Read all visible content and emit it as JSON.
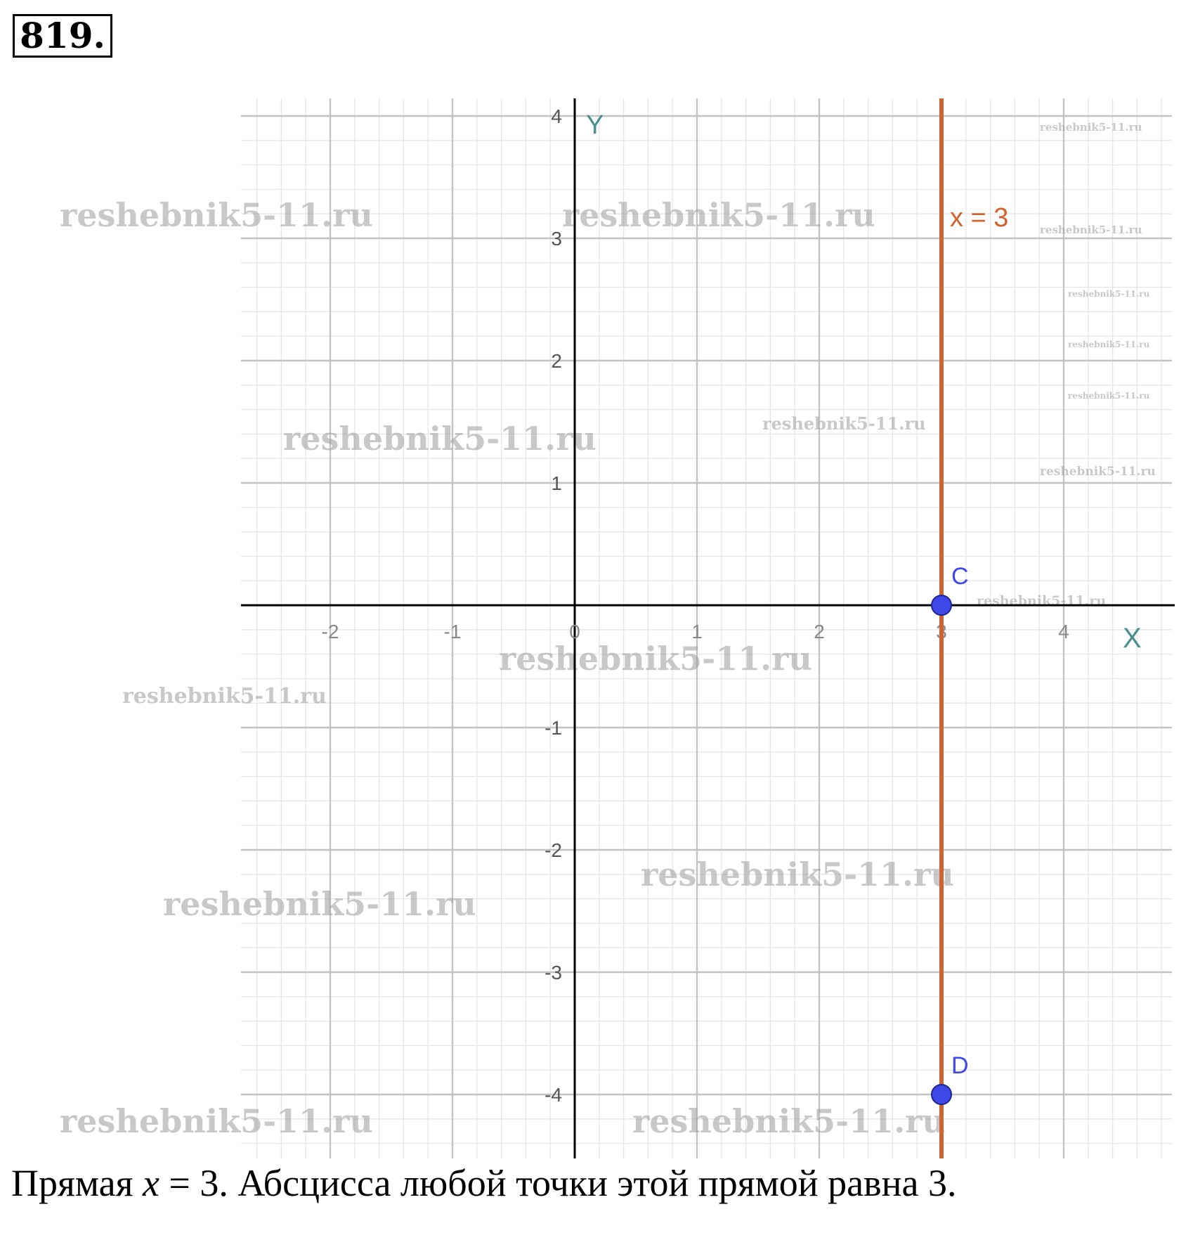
{
  "problem_number": "819.",
  "graph": {
    "x_axis_label": "X",
    "y_axis_label": "Y",
    "x_ticks": [
      -2,
      -1,
      0,
      1,
      2,
      3,
      4
    ],
    "y_ticks": [
      -4,
      -3,
      -2,
      -1,
      1,
      2,
      3,
      4
    ],
    "xlim": [
      -2.75,
      4.9
    ],
    "ylim": [
      -4.5,
      4.2
    ],
    "minor_grid_step": 0.2,
    "line": {
      "label": "x = 3",
      "x": 3,
      "color": "#d2622f"
    },
    "points": [
      {
        "label": "C",
        "x": 3,
        "y": 0,
        "color": "#3f48e8"
      },
      {
        "label": "D",
        "x": 3,
        "y": -4,
        "color": "#3f48e8"
      }
    ]
  },
  "caption": {
    "prefix": "Прямая ",
    "math": "x",
    "middle": " = 3. Абсцисса любой точки этой прямой равна 3."
  },
  "watermark": "reshebnik5-11.ru"
}
